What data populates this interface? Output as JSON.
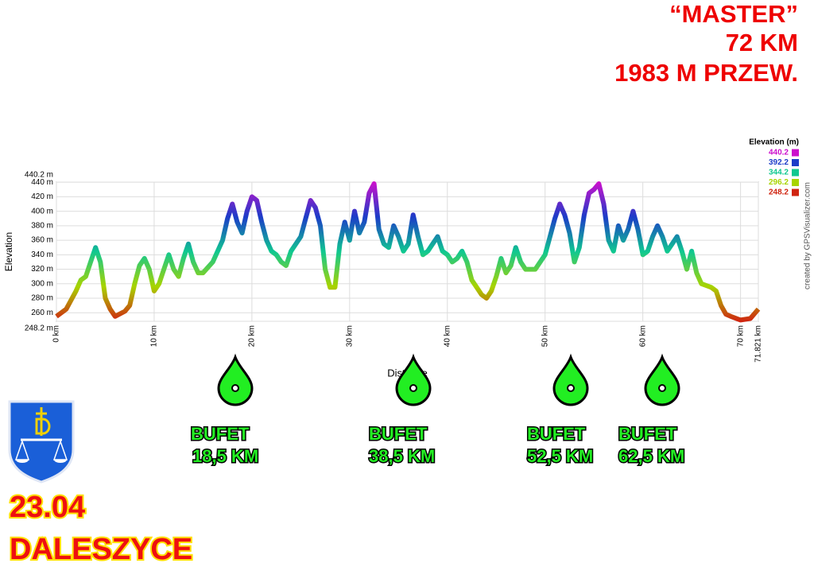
{
  "header": {
    "title": "“MASTER”",
    "distance": "72 KM",
    "climb": "1983 M PRZEW."
  },
  "chart_data": {
    "type": "line",
    "x_label": "Distance",
    "y_label": "Elevation",
    "credit": "created by GPSVisualizer.com",
    "x": [
      0,
      1,
      2,
      2.5,
      3,
      3.5,
      4,
      4.5,
      5,
      5.5,
      6,
      7,
      7.5,
      8,
      8.5,
      9,
      9.5,
      10,
      10.5,
      11,
      11.5,
      12,
      12.5,
      13,
      13.5,
      14,
      14.5,
      15,
      16,
      17,
      17.5,
      18,
      18.5,
      19,
      19.5,
      20,
      20.5,
      21,
      21.5,
      22,
      22.5,
      23,
      23.5,
      24,
      25,
      25.5,
      26,
      26.5,
      27,
      27.5,
      28,
      28.5,
      29,
      29.5,
      30,
      30.5,
      31,
      31.5,
      32,
      32.5,
      33,
      33.5,
      34,
      34.5,
      35,
      35.5,
      36,
      36.5,
      37,
      37.5,
      38,
      38.5,
      39,
      39.5,
      40,
      40.5,
      41,
      41.5,
      42,
      42.5,
      43,
      43.5,
      44,
      44.5,
      45,
      45.5,
      46,
      46.5,
      47,
      47.5,
      48,
      49,
      50,
      50.5,
      51,
      51.5,
      52,
      52.5,
      53,
      53.5,
      54,
      54.5,
      55,
      55.5,
      56,
      56.5,
      57,
      57.5,
      58,
      58.5,
      59,
      59.5,
      60,
      60.5,
      61,
      61.5,
      62,
      62.5,
      63,
      63.5,
      64,
      64.5,
      65,
      65.5,
      66,
      67,
      67.5,
      68,
      68.5,
      69,
      70,
      71,
      71.821
    ],
    "values": [
      255,
      265,
      290,
      305,
      310,
      330,
      350,
      330,
      280,
      265,
      255,
      262,
      270,
      300,
      325,
      335,
      320,
      290,
      300,
      320,
      340,
      320,
      310,
      335,
      355,
      330,
      315,
      315,
      330,
      360,
      390,
      410,
      385,
      370,
      400,
      420,
      415,
      385,
      360,
      345,
      340,
      330,
      325,
      345,
      365,
      390,
      415,
      405,
      380,
      320,
      295,
      295,
      355,
      385,
      360,
      400,
      370,
      385,
      425,
      438,
      375,
      355,
      350,
      380,
      365,
      345,
      355,
      395,
      365,
      340,
      345,
      355,
      365,
      345,
      340,
      330,
      335,
      345,
      330,
      305,
      295,
      285,
      280,
      290,
      310,
      335,
      315,
      325,
      350,
      330,
      320,
      320,
      340,
      365,
      390,
      410,
      395,
      370,
      330,
      350,
      395,
      425,
      430,
      438,
      410,
      360,
      345,
      380,
      360,
      375,
      400,
      375,
      340,
      345,
      365,
      380,
      365,
      345,
      355,
      365,
      345,
      320,
      345,
      315,
      300,
      295,
      290,
      270,
      258,
      255,
      250,
      252,
      265
    ],
    "xlim": [
      0,
      71.821
    ],
    "xticks": [
      {
        "value": 0,
        "label": "0 km"
      },
      {
        "value": 10,
        "label": "10 km"
      },
      {
        "value": 20,
        "label": "20 km"
      },
      {
        "value": 30,
        "label": "30 km"
      },
      {
        "value": 40,
        "label": "40 km"
      },
      {
        "value": 50,
        "label": "50 km"
      },
      {
        "value": 60,
        "label": "60 km"
      },
      {
        "value": 70,
        "label": "70 km"
      },
      {
        "value": 71.821,
        "label": "71.821 km"
      }
    ],
    "ylim": [
      248.2,
      440.2
    ],
    "yticks": [
      {
        "value": 248.2,
        "label": "248.2 m"
      },
      {
        "value": 260,
        "label": "260 m"
      },
      {
        "value": 280,
        "label": "280 m"
      },
      {
        "value": 300,
        "label": "300 m"
      },
      {
        "value": 320,
        "label": "320 m"
      },
      {
        "value": 340,
        "label": "340 m"
      },
      {
        "value": 360,
        "label": "360 m"
      },
      {
        "value": 380,
        "label": "380 m"
      },
      {
        "value": 400,
        "label": "400 m"
      },
      {
        "value": 420,
        "label": "420 m"
      },
      {
        "value": 440,
        "label": "440 m"
      },
      {
        "value": 440.2,
        "label": "440.2 m"
      }
    ],
    "grid": true,
    "legend": {
      "title": "Elevation (m)",
      "entries": [
        {
          "value": 440.2,
          "color": "#cc10cc"
        },
        {
          "value": 392.2,
          "color": "#1c3cc8"
        },
        {
          "value": 344.2,
          "color": "#10c890"
        },
        {
          "value": 296.2,
          "color": "#a8d400"
        },
        {
          "value": 248.2,
          "color": "#d02410"
        }
      ]
    }
  },
  "bufets": [
    {
      "label": "BUFET",
      "distance": "18,5 KM"
    },
    {
      "label": "BUFET",
      "distance": "38,5 KM"
    },
    {
      "label": "BUFET",
      "distance": "52,5 KM"
    },
    {
      "label": "BUFET",
      "distance": "62,5 KM"
    }
  ],
  "footer": {
    "date": "23.04",
    "place": "DALESZYCE"
  }
}
